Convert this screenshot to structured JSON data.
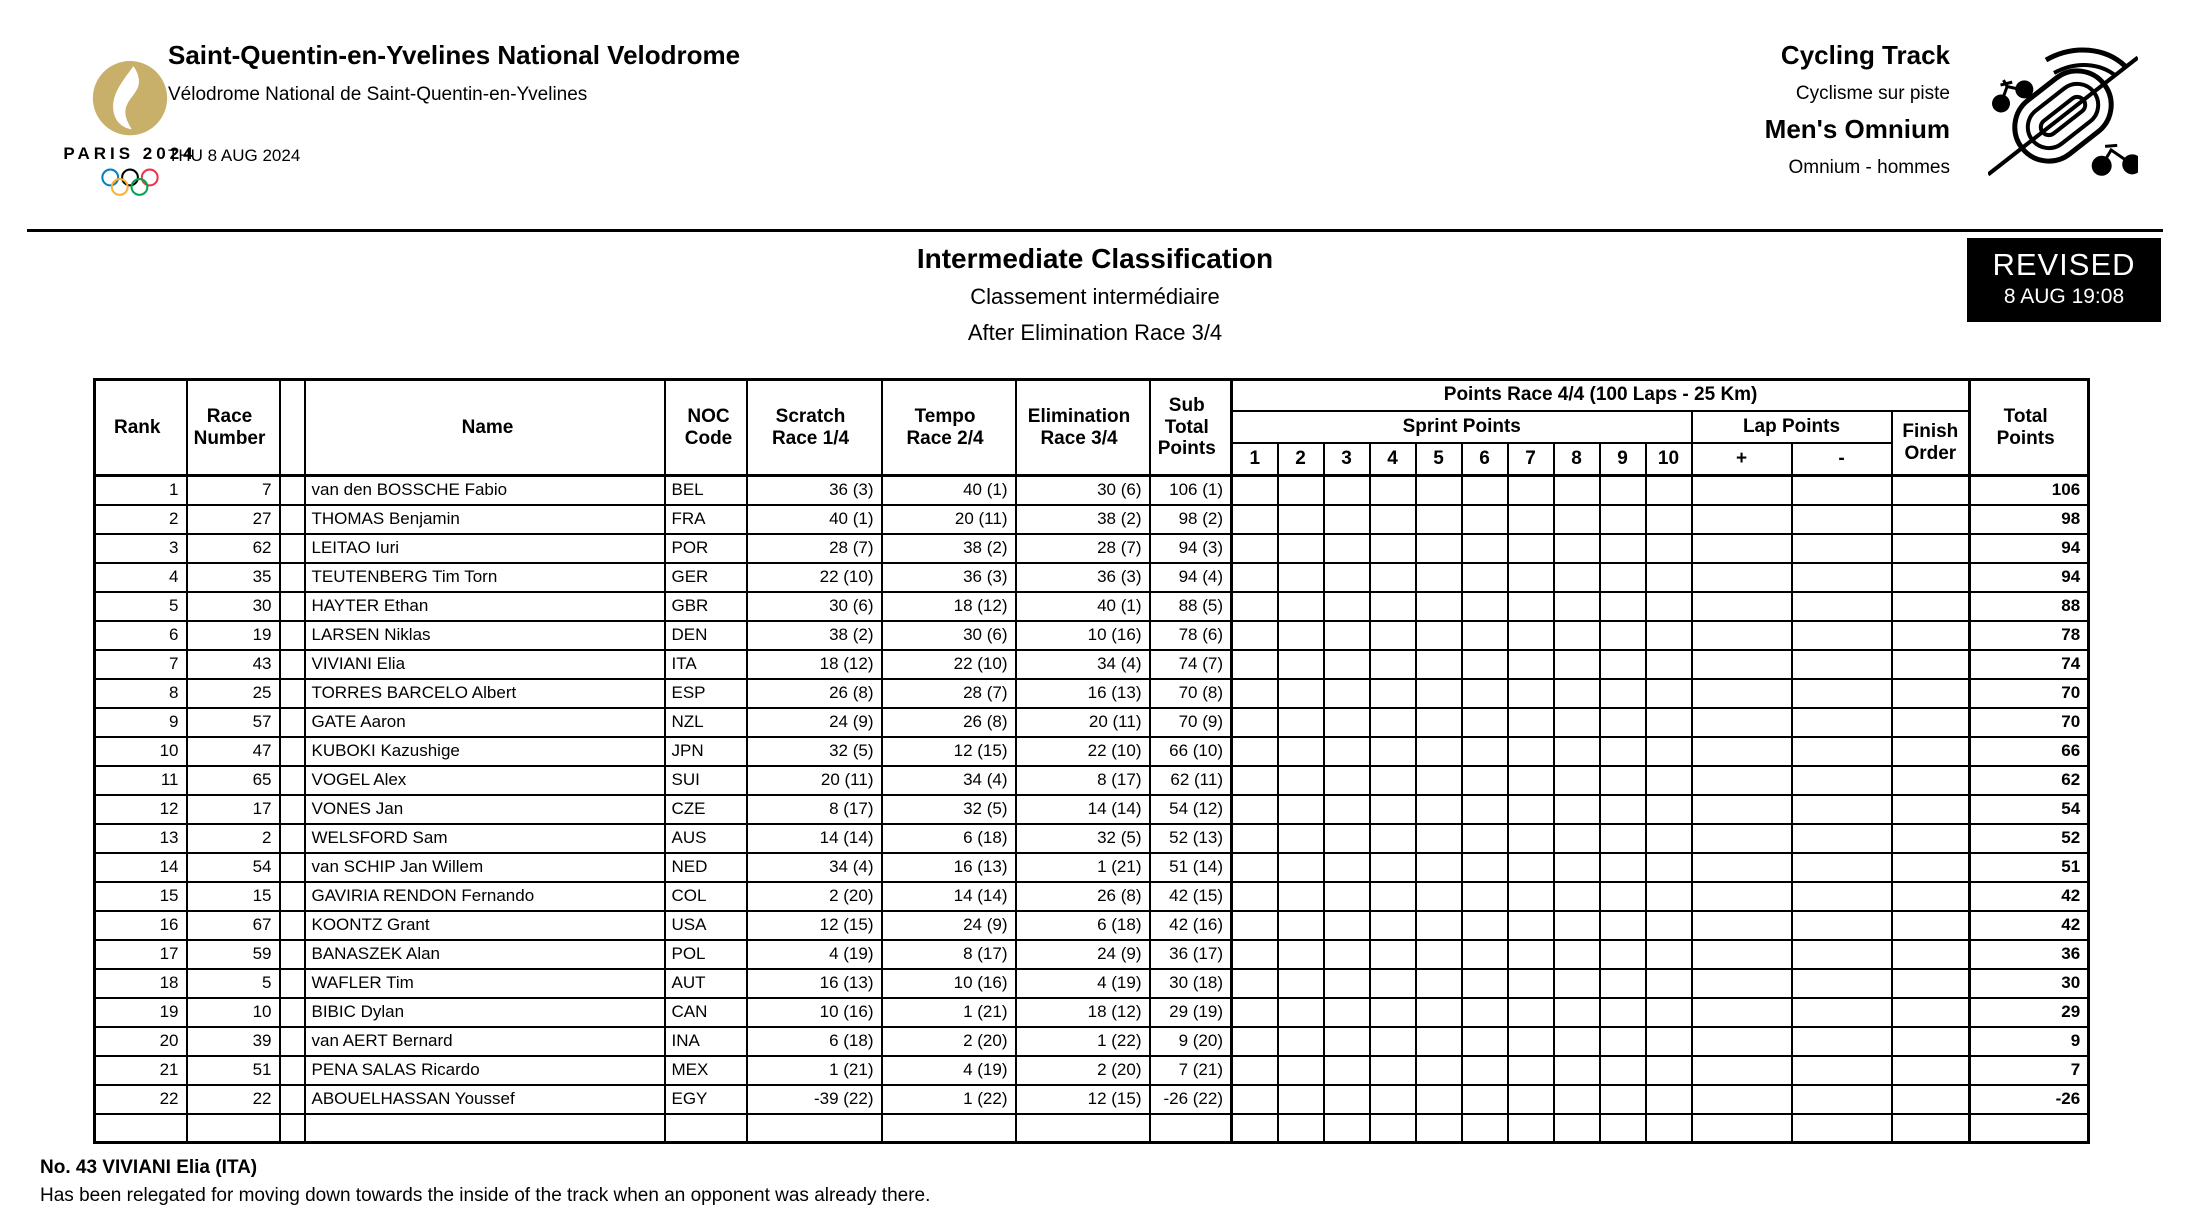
{
  "header": {
    "venue_en": "Saint-Quentin-en-Yvelines National Velodrome",
    "venue_fr": "Vélodrome National de Saint-Quentin-en-Yvelines",
    "date": "THU 8 AUG 2024",
    "logo_wordmark": "PARIS 2024",
    "discipline_en": "Cycling Track",
    "discipline_fr": "Cyclisme sur piste",
    "event_en": "Men's Omnium",
    "event_fr": "Omnium - hommes"
  },
  "title": {
    "main": "Intermediate Classification",
    "fr": "Classement intermédiaire",
    "after": "After Elimination Race 3/4"
  },
  "revised": {
    "label": "REVISED",
    "time": "8 AUG 19:08"
  },
  "colors": {
    "logo_gold": "#C8B06B",
    "revised_bg": "#000000",
    "revised_text": "#FFFFFF",
    "ring_blue": "#0081C8",
    "ring_yellow": "#FCB131",
    "ring_black": "#000000",
    "ring_green": "#00A651",
    "ring_red": "#EE334E"
  },
  "table": {
    "headers": {
      "rank": "Rank",
      "race_number": "Race\nNumber",
      "name": "Name",
      "noc_code": "NOC\nCode",
      "scratch": "Scratch\nRace 1/4",
      "tempo": "Tempo\nRace 2/4",
      "elimination": "Elimination\nRace 3/4",
      "sub_total": "Sub\nTotal\nPoints",
      "points_race": "Points Race 4/4 (100 Laps - 25 Km)",
      "sprint_points": "Sprint Points",
      "lap_points": "Lap Points",
      "finish_order": "Finish\nOrder",
      "total_points": "Total\nPoints"
    },
    "sprint_numbers": [
      "1",
      "2",
      "3",
      "4",
      "5",
      "6",
      "7",
      "8",
      "9",
      "10"
    ],
    "lap_signs": [
      "+",
      "-"
    ],
    "rows": [
      {
        "rank": "1",
        "race_number": "7",
        "name": "van den BOSSCHE Fabio",
        "noc": "BEL",
        "scratch": "36 (3)",
        "tempo": "40 (1)",
        "elimination": "30 (6)",
        "sub_total": "106 (1)",
        "total": "106"
      },
      {
        "rank": "2",
        "race_number": "27",
        "name": "THOMAS Benjamin",
        "noc": "FRA",
        "scratch": "40 (1)",
        "tempo": "20 (11)",
        "elimination": "38 (2)",
        "sub_total": "98 (2)",
        "total": "98"
      },
      {
        "rank": "3",
        "race_number": "62",
        "name": "LEITAO Iuri",
        "noc": "POR",
        "scratch": "28 (7)",
        "tempo": "38 (2)",
        "elimination": "28 (7)",
        "sub_total": "94 (3)",
        "total": "94"
      },
      {
        "rank": "4",
        "race_number": "35",
        "name": "TEUTENBERG Tim Torn",
        "noc": "GER",
        "scratch": "22 (10)",
        "tempo": "36 (3)",
        "elimination": "36 (3)",
        "sub_total": "94 (4)",
        "total": "94"
      },
      {
        "rank": "5",
        "race_number": "30",
        "name": "HAYTER Ethan",
        "noc": "GBR",
        "scratch": "30 (6)",
        "tempo": "18 (12)",
        "elimination": "40 (1)",
        "sub_total": "88 (5)",
        "total": "88"
      },
      {
        "rank": "6",
        "race_number": "19",
        "name": "LARSEN Niklas",
        "noc": "DEN",
        "scratch": "38 (2)",
        "tempo": "30 (6)",
        "elimination": "10 (16)",
        "sub_total": "78 (6)",
        "total": "78"
      },
      {
        "rank": "7",
        "race_number": "43",
        "name": "VIVIANI Elia",
        "noc": "ITA",
        "scratch": "18 (12)",
        "tempo": "22 (10)",
        "elimination": "34 (4)",
        "sub_total": "74 (7)",
        "total": "74"
      },
      {
        "rank": "8",
        "race_number": "25",
        "name": "TORRES BARCELO Albert",
        "noc": "ESP",
        "scratch": "26 (8)",
        "tempo": "28 (7)",
        "elimination": "16 (13)",
        "sub_total": "70 (8)",
        "total": "70"
      },
      {
        "rank": "9",
        "race_number": "57",
        "name": "GATE Aaron",
        "noc": "NZL",
        "scratch": "24 (9)",
        "tempo": "26 (8)",
        "elimination": "20 (11)",
        "sub_total": "70 (9)",
        "total": "70"
      },
      {
        "rank": "10",
        "race_number": "47",
        "name": "KUBOKI Kazushige",
        "noc": "JPN",
        "scratch": "32 (5)",
        "tempo": "12 (15)",
        "elimination": "22 (10)",
        "sub_total": "66 (10)",
        "total": "66"
      },
      {
        "rank": "11",
        "race_number": "65",
        "name": "VOGEL Alex",
        "noc": "SUI",
        "scratch": "20 (11)",
        "tempo": "34 (4)",
        "elimination": "8 (17)",
        "sub_total": "62 (11)",
        "total": "62"
      },
      {
        "rank": "12",
        "race_number": "17",
        "name": "VONES Jan",
        "noc": "CZE",
        "scratch": "8 (17)",
        "tempo": "32 (5)",
        "elimination": "14 (14)",
        "sub_total": "54 (12)",
        "total": "54"
      },
      {
        "rank": "13",
        "race_number": "2",
        "name": "WELSFORD Sam",
        "noc": "AUS",
        "scratch": "14 (14)",
        "tempo": "6 (18)",
        "elimination": "32 (5)",
        "sub_total": "52 (13)",
        "total": "52"
      },
      {
        "rank": "14",
        "race_number": "54",
        "name": "van SCHIP Jan Willem",
        "noc": "NED",
        "scratch": "34 (4)",
        "tempo": "16 (13)",
        "elimination": "1 (21)",
        "sub_total": "51 (14)",
        "total": "51"
      },
      {
        "rank": "15",
        "race_number": "15",
        "name": "GAVIRIA RENDON Fernando",
        "noc": "COL",
        "scratch": "2 (20)",
        "tempo": "14 (14)",
        "elimination": "26 (8)",
        "sub_total": "42 (15)",
        "total": "42"
      },
      {
        "rank": "16",
        "race_number": "67",
        "name": "KOONTZ Grant",
        "noc": "USA",
        "scratch": "12 (15)",
        "tempo": "24 (9)",
        "elimination": "6 (18)",
        "sub_total": "42 (16)",
        "total": "42"
      },
      {
        "rank": "17",
        "race_number": "59",
        "name": "BANASZEK Alan",
        "noc": "POL",
        "scratch": "4 (19)",
        "tempo": "8 (17)",
        "elimination": "24 (9)",
        "sub_total": "36 (17)",
        "total": "36"
      },
      {
        "rank": "18",
        "race_number": "5",
        "name": "WAFLER Tim",
        "noc": "AUT",
        "scratch": "16 (13)",
        "tempo": "10 (16)",
        "elimination": "4 (19)",
        "sub_total": "30 (18)",
        "total": "30"
      },
      {
        "rank": "19",
        "race_number": "10",
        "name": "BIBIC Dylan",
        "noc": "CAN",
        "scratch": "10 (16)",
        "tempo": "1 (21)",
        "elimination": "18 (12)",
        "sub_total": "29 (19)",
        "total": "29"
      },
      {
        "rank": "20",
        "race_number": "39",
        "name": "van AERT Bernard",
        "noc": "INA",
        "scratch": "6 (18)",
        "tempo": "2 (20)",
        "elimination": "1 (22)",
        "sub_total": "9 (20)",
        "total": "9"
      },
      {
        "rank": "21",
        "race_number": "51",
        "name": "PENA SALAS Ricardo",
        "noc": "MEX",
        "scratch": "1 (21)",
        "tempo": "4 (19)",
        "elimination": "2 (20)",
        "sub_total": "7 (21)",
        "total": "7"
      },
      {
        "rank": "22",
        "race_number": "22",
        "name": "ABOUELHASSAN Youssef",
        "noc": "EGY",
        "scratch": "-39 (22)",
        "tempo": "1 (22)",
        "elimination": "12 (15)",
        "sub_total": "-26 (22)",
        "total": "-26"
      }
    ]
  },
  "notes": {
    "title": "No. 43 VIVIANI Elia (ITA)",
    "body": "Has been relegated for moving down towards the inside of the track when an opponent was already there."
  }
}
